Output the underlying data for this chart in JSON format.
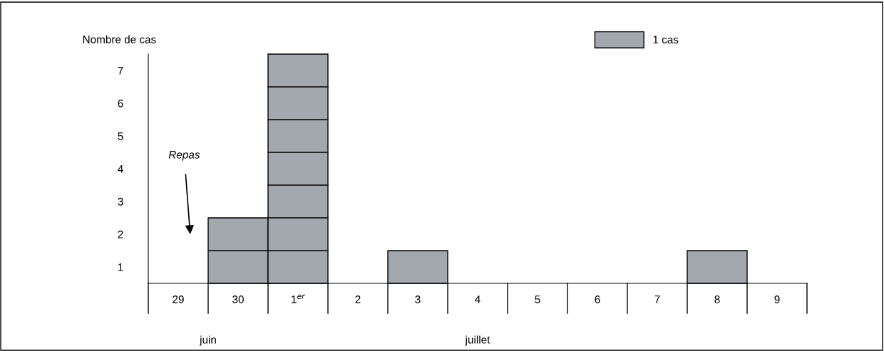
{
  "chart_data": {
    "type": "bar",
    "ylabel": "Nombre de cas",
    "categories": [
      "29",
      "30",
      "1$^{er}$",
      "2",
      "3",
      "4",
      "5",
      "6",
      "7",
      "8",
      "9"
    ],
    "series": [
      {
        "name": "1 cas",
        "color": "#a3a8ae",
        "values": [
          0,
          2,
          7,
          0,
          1,
          0,
          0,
          0,
          0,
          1,
          0
        ]
      }
    ],
    "ylim": [
      0,
      7
    ],
    "yticks": [
      {
        "value": 0.5,
        "label": "1"
      },
      {
        "value": 1.5,
        "label": "2"
      },
      {
        "value": 2.5,
        "label": "3"
      },
      {
        "value": 3.5,
        "label": "4"
      },
      {
        "value": 4.5,
        "label": "5"
      },
      {
        "value": 5.5,
        "label": "6"
      },
      {
        "value": 6.5,
        "label": "7"
      }
    ],
    "annotations": [
      "Repas",
      "juin",
      "juillet"
    ],
    "legend": "top right",
    "grid": false
  }
}
